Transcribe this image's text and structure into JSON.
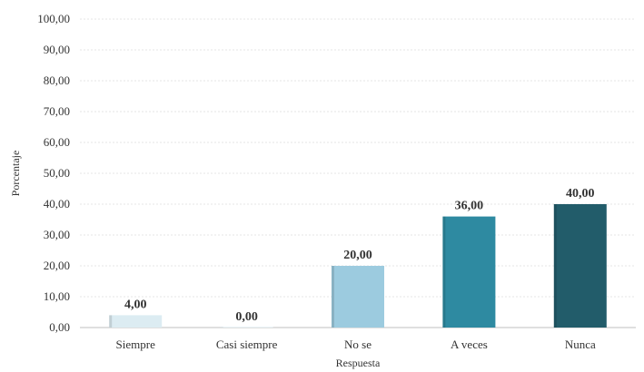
{
  "chart_data": {
    "type": "bar",
    "categories": [
      "Siempre",
      "Casi siempre",
      "No se",
      "A veces",
      "Nunca"
    ],
    "values": [
      4.0,
      0.0,
      20.0,
      36.0,
      40.0
    ],
    "data_labels": [
      "4,00",
      "0,00",
      "20,00",
      "36,00",
      "40,00"
    ],
    "colors": [
      "#dcecf2",
      "#dcecf2",
      "#9ccbdf",
      "#2e8aa1",
      "#225c6a"
    ],
    "xlabel": "Respuesta",
    "ylabel": "Porcentaje",
    "ylim": [
      0,
      100
    ],
    "yticks": [
      0,
      10,
      20,
      30,
      40,
      50,
      60,
      70,
      80,
      90,
      100
    ],
    "ytick_labels": [
      "0,00",
      "10,00",
      "20,00",
      "30,00",
      "40,00",
      "50,00",
      "60,00",
      "70,00",
      "80,00",
      "90,00",
      "100,00"
    ],
    "grid": true,
    "legend": "none"
  }
}
